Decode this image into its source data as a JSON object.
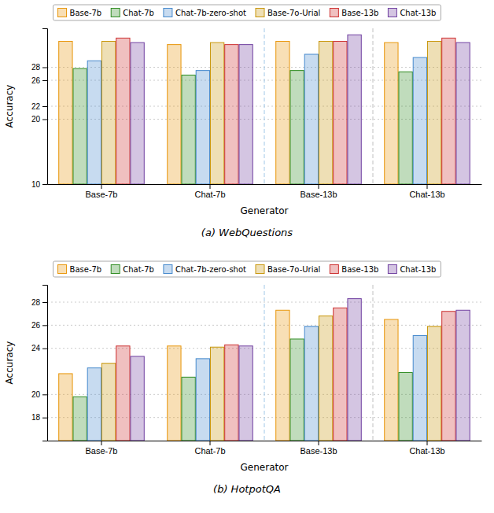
{
  "chart_data": [
    {
      "type": "bar",
      "title": "(a) WebQuestions",
      "categories": [
        "Base-7b",
        "Chat-7b",
        "Base-13b",
        "Chat-13b"
      ],
      "series": [
        {
          "name": "Base-7b",
          "color": "#e8960a",
          "values": [
            32.0,
            31.5,
            32.0,
            31.8
          ]
        },
        {
          "name": "Chat-7b",
          "color": "#2e8b20",
          "values": [
            27.8,
            26.8,
            27.5,
            27.3
          ]
        },
        {
          "name": "Chat-7b-zero-shot",
          "color": "#4488cc",
          "values": [
            29.0,
            27.5,
            30.0,
            29.5
          ]
        },
        {
          "name": "Base-7o-Urial",
          "color": "#c8960a",
          "values": [
            32.0,
            31.8,
            32.0,
            32.0
          ]
        },
        {
          "name": "Base-13b",
          "color": "#cc3030",
          "values": [
            32.5,
            31.5,
            32.0,
            32.5
          ]
        },
        {
          "name": "Chat-13b",
          "color": "#7040a0",
          "values": [
            31.8,
            31.5,
            33.0,
            31.8
          ]
        }
      ],
      "xlabel": "Generator",
      "ylabel": "Accuracy",
      "ylim": [
        10,
        34
      ],
      "yticks": [
        10,
        20,
        22,
        26,
        28
      ],
      "grid": true,
      "legend": "top"
    },
    {
      "type": "bar",
      "title": "(b) HotpotQA",
      "categories": [
        "Base-7b",
        "Chat-7b",
        "Base-13b",
        "Chat-13b"
      ],
      "series": [
        {
          "name": "Base-7b",
          "color": "#e8960a",
          "values": [
            21.8,
            24.2,
            27.3,
            26.5
          ]
        },
        {
          "name": "Chat-7b",
          "color": "#2e8b20",
          "values": [
            19.8,
            21.5,
            24.8,
            21.9
          ]
        },
        {
          "name": "Chat-7b-zero-shot",
          "color": "#4488cc",
          "values": [
            22.3,
            23.1,
            25.9,
            25.1
          ]
        },
        {
          "name": "Base-7o-Urial",
          "color": "#c8960a",
          "values": [
            22.7,
            24.1,
            26.8,
            25.9
          ]
        },
        {
          "name": "Base-13b",
          "color": "#cc3030",
          "values": [
            24.2,
            24.3,
            27.5,
            27.2
          ]
        },
        {
          "name": "Chat-13b",
          "color": "#7040a0",
          "values": [
            23.3,
            24.2,
            28.3,
            27.3
          ]
        }
      ],
      "xlabel": "Generator",
      "ylabel": "Accuracy",
      "ylim": [
        16,
        29.5
      ],
      "yticks": [
        18,
        20,
        24,
        26,
        28
      ],
      "grid": true,
      "legend": "top"
    }
  ]
}
